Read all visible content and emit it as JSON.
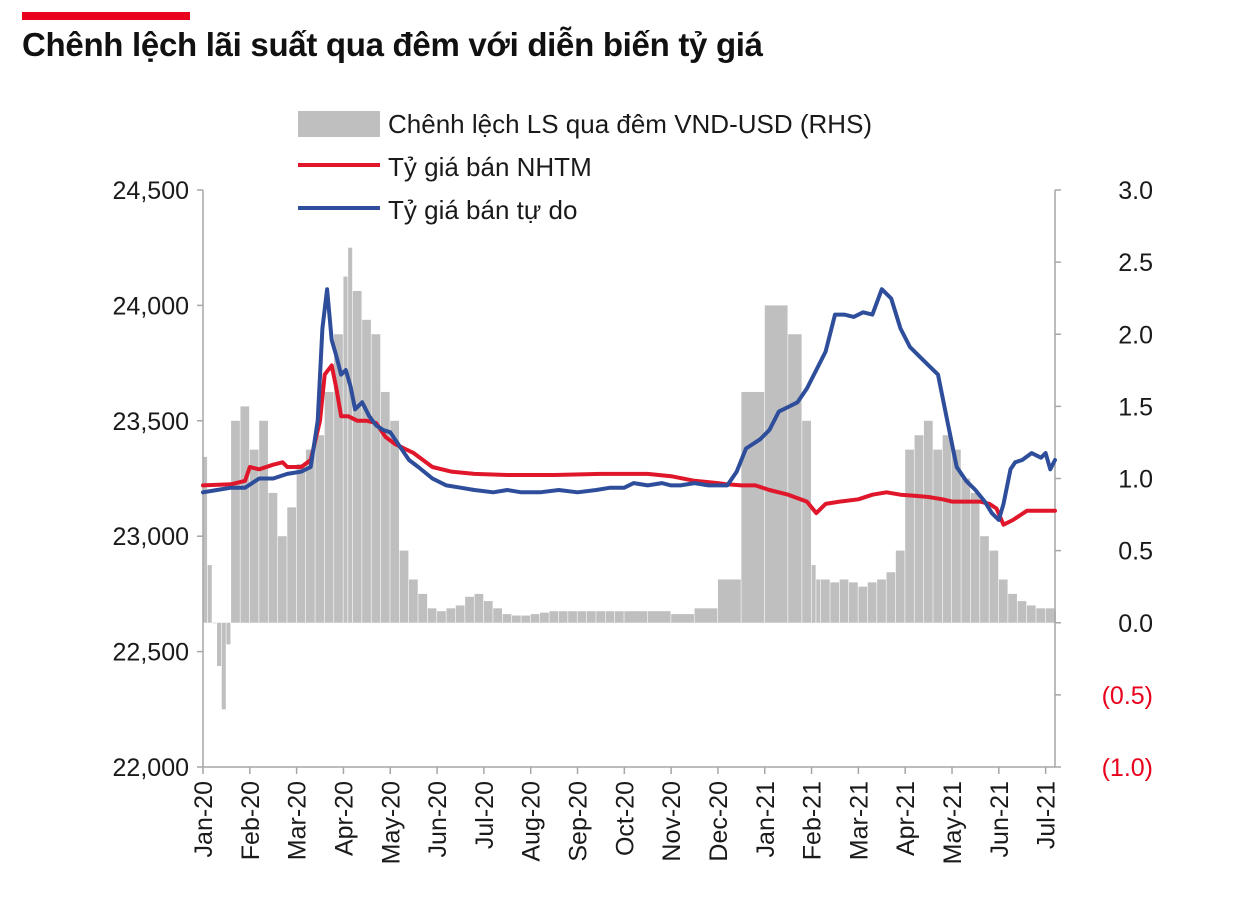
{
  "title": "Chênh lệch lãi suất qua đêm với diễn biến tỷ giá",
  "colors": {
    "accent": "#e8001c",
    "bar": "#bfbfbf",
    "nhtm": "#e0162b",
    "free": "#2e4d9b",
    "negative": "#e8001c"
  },
  "chart_data": {
    "type": "bar+line",
    "title": "Chênh lệch lãi suất qua đêm với diễn biến tỷ giá",
    "x_labels": [
      "Jan-20",
      "Feb-20",
      "Mar-20",
      "Apr-20",
      "May-20",
      "Jun-20",
      "Jul-20",
      "Aug-20",
      "Sep-20",
      "Oct-20",
      "Nov-20",
      "Dec-20",
      "Jan-21",
      "Feb-21",
      "Mar-21",
      "Apr-21",
      "May-21",
      "Jun-21",
      "Jul-21"
    ],
    "x_range": [
      0,
      18.2
    ],
    "y_left": {
      "range": [
        22000,
        24500
      ],
      "ticks": [
        22000,
        22500,
        23000,
        23500,
        24000,
        24500
      ],
      "labels": [
        "22,000",
        "22,500",
        "23,000",
        "23,500",
        "24,000",
        "24,500"
      ]
    },
    "y_right": {
      "range": [
        -1.0,
        3.0
      ],
      "ticks": [
        -1.0,
        -0.5,
        0.0,
        0.5,
        1.0,
        1.5,
        2.0,
        2.5,
        3.0
      ],
      "labels": [
        "(1.0)",
        "(0.5)",
        "0.0",
        "0.5",
        "1.0",
        "1.5",
        "2.0",
        "2.5",
        "3.0"
      ],
      "negative_labels_color": "red"
    },
    "legend": [
      {
        "key": "spread",
        "label": "Chênh lệch LS qua đêm VND-USD (RHS)",
        "marker": "bar"
      },
      {
        "key": "nhtm",
        "label": "Tỷ giá bán NHTM",
        "marker": "line"
      },
      {
        "key": "free",
        "label": "Tỷ giá bán tự do",
        "marker": "line"
      }
    ],
    "series": [
      {
        "name": "Chênh lệch LS qua đêm VND-USD (RHS)",
        "type": "bar",
        "axis": "right",
        "x": [
          0,
          0.1,
          0.2,
          0.3,
          0.4,
          0.5,
          0.6,
          0.8,
          1.0,
          1.2,
          1.4,
          1.6,
          1.8,
          2.0,
          2.2,
          2.4,
          2.6,
          2.8,
          3.0,
          3.1,
          3.2,
          3.4,
          3.6,
          3.8,
          4.0,
          4.2,
          4.4,
          4.6,
          4.8,
          5.0,
          5.2,
          5.4,
          5.6,
          5.8,
          6.0,
          6.2,
          6.4,
          6.6,
          6.8,
          7.0,
          7.2,
          7.4,
          7.6,
          7.8,
          8.0,
          8.2,
          8.4,
          8.6,
          8.8,
          9.0,
          9.5,
          10.0,
          10.5,
          11.0,
          11.5,
          12.0,
          12.5,
          12.8,
          13.0,
          13.1,
          13.2,
          13.4,
          13.6,
          13.8,
          14.0,
          14.2,
          14.4,
          14.6,
          14.8,
          15.0,
          15.2,
          15.4,
          15.6,
          15.8,
          16.0,
          16.2,
          16.4,
          16.6,
          16.8,
          17.0,
          17.2,
          17.4,
          17.6,
          17.8,
          18.0,
          18.2
        ],
        "values": [
          1.15,
          0.4,
          0.0,
          -0.3,
          -0.6,
          -0.15,
          1.4,
          1.5,
          1.2,
          1.4,
          0.9,
          0.6,
          0.8,
          1.1,
          1.2,
          1.3,
          1.6,
          2.0,
          2.4,
          2.6,
          2.3,
          2.1,
          2.0,
          1.6,
          1.4,
          0.5,
          0.3,
          0.2,
          0.1,
          0.08,
          0.1,
          0.12,
          0.18,
          0.2,
          0.15,
          0.1,
          0.06,
          0.05,
          0.05,
          0.06,
          0.07,
          0.08,
          0.08,
          0.08,
          0.08,
          0.08,
          0.08,
          0.08,
          0.08,
          0.08,
          0.08,
          0.06,
          0.1,
          0.3,
          1.6,
          2.2,
          2.0,
          1.4,
          0.4,
          0.3,
          0.3,
          0.28,
          0.3,
          0.28,
          0.25,
          0.28,
          0.3,
          0.35,
          0.5,
          1.2,
          1.3,
          1.4,
          1.2,
          1.3,
          1.2,
          1.0,
          0.9,
          0.6,
          0.5,
          0.3,
          0.2,
          0.15,
          0.12,
          0.1,
          0.1,
          0.08
        ]
      },
      {
        "name": "Tỷ giá bán NHTM",
        "type": "line",
        "axis": "left",
        "x": [
          0,
          0.6,
          0.9,
          1.0,
          1.2,
          1.5,
          1.7,
          1.8,
          2.1,
          2.3,
          2.5,
          2.6,
          2.75,
          2.85,
          2.95,
          3.1,
          3.3,
          3.5,
          3.7,
          3.9,
          4.1,
          4.3,
          4.5,
          4.9,
          5.3,
          5.8,
          6.5,
          7.5,
          8.5,
          9.0,
          9.5,
          10.0,
          10.5,
          11.0,
          11.2,
          11.5,
          11.8,
          12.1,
          12.5,
          12.9,
          13.1,
          13.3,
          13.6,
          14.0,
          14.3,
          14.6,
          14.9,
          15.2,
          15.5,
          15.8,
          16.0,
          16.3,
          16.6,
          16.8,
          16.95,
          17.1,
          17.3,
          17.6,
          18.0,
          18.2
        ],
        "values": [
          23220,
          23225,
          23240,
          23300,
          23290,
          23310,
          23320,
          23300,
          23300,
          23330,
          23500,
          23700,
          23740,
          23640,
          23520,
          23520,
          23500,
          23500,
          23490,
          23430,
          23400,
          23380,
          23360,
          23300,
          23280,
          23270,
          23265,
          23265,
          23270,
          23270,
          23270,
          23260,
          23240,
          23230,
          23225,
          23220,
          23220,
          23200,
          23180,
          23150,
          23100,
          23140,
          23150,
          23160,
          23180,
          23190,
          23180,
          23175,
          23170,
          23160,
          23150,
          23150,
          23150,
          23140,
          23120,
          23050,
          23070,
          23110,
          23110,
          23110
        ]
      },
      {
        "name": "Tỷ giá bán tự do",
        "type": "line",
        "axis": "left",
        "x": [
          0,
          0.3,
          0.6,
          0.9,
          1.2,
          1.5,
          1.8,
          2.1,
          2.3,
          2.45,
          2.55,
          2.65,
          2.75,
          2.85,
          2.95,
          3.05,
          3.15,
          3.25,
          3.4,
          3.55,
          3.7,
          3.85,
          4.0,
          4.2,
          4.4,
          4.6,
          4.9,
          5.2,
          5.5,
          5.8,
          6.2,
          6.5,
          6.8,
          7.2,
          7.6,
          8.0,
          8.4,
          8.7,
          9.0,
          9.2,
          9.5,
          9.8,
          10.0,
          10.2,
          10.5,
          10.8,
          11.0,
          11.2,
          11.4,
          11.6,
          11.9,
          12.1,
          12.3,
          12.5,
          12.7,
          12.9,
          13.1,
          13.3,
          13.5,
          13.7,
          13.9,
          14.1,
          14.3,
          14.5,
          14.7,
          14.9,
          15.1,
          15.3,
          15.5,
          15.7,
          15.9,
          16.1,
          16.3,
          16.5,
          16.7,
          16.85,
          17.0,
          17.1,
          17.25,
          17.35,
          17.5,
          17.7,
          17.9,
          18.0,
          18.1,
          18.2
        ],
        "values": [
          23190,
          23200,
          23210,
          23210,
          23250,
          23250,
          23270,
          23280,
          23300,
          23500,
          23900,
          24070,
          23850,
          23780,
          23700,
          23720,
          23650,
          23550,
          23580,
          23520,
          23480,
          23460,
          23450,
          23390,
          23330,
          23300,
          23250,
          23220,
          23210,
          23200,
          23190,
          23200,
          23190,
          23190,
          23200,
          23190,
          23200,
          23210,
          23210,
          23230,
          23220,
          23230,
          23220,
          23220,
          23230,
          23220,
          23220,
          23220,
          23280,
          23380,
          23420,
          23460,
          23540,
          23560,
          23580,
          23640,
          23720,
          23800,
          23960,
          23960,
          23950,
          23970,
          23960,
          24070,
          24030,
          23900,
          23820,
          23780,
          23740,
          23700,
          23500,
          23300,
          23240,
          23200,
          23150,
          23100,
          23070,
          23140,
          23290,
          23320,
          23330,
          23360,
          23340,
          23360,
          23290,
          23330
        ]
      }
    ]
  }
}
